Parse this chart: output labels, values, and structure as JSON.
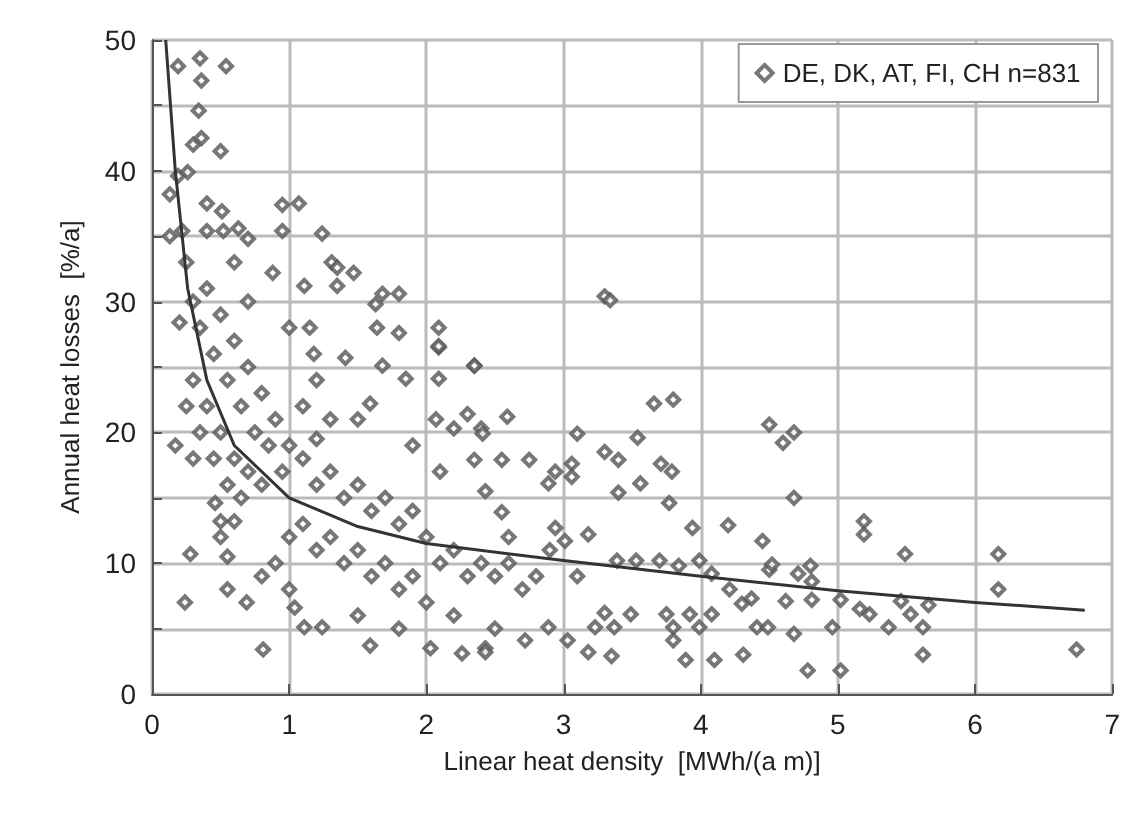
{
  "chart_data": {
    "type": "scatter",
    "xlabel": "Linear heat density  [MWh/(a m)]",
    "ylabel": "Annual heat losses  [%/a]",
    "xlim": [
      0,
      7
    ],
    "xticks": [
      0,
      1,
      2,
      3,
      4,
      5,
      6,
      7
    ],
    "ylim": [
      0,
      50
    ],
    "yticks": [
      0,
      {
        "value": 5,
        "label": null
      },
      10,
      {
        "value": 15,
        "label": null
      },
      20,
      {
        "value": 25,
        "label": null
      },
      30,
      {
        "value": 35,
        "label": null
      },
      40,
      {
        "value": 45,
        "label": null
      },
      50
    ],
    "grid": true,
    "legend": "top right",
    "marker": "diamond",
    "series": [
      {
        "name": "DE, DK, AT, FI, CH n=831",
        "color": "#555555",
        "x": [
          0.35,
          0.54,
          0.19,
          0.36,
          0.34,
          0.36,
          0.3,
          0.5,
          0.19,
          0.26,
          0.13,
          0.4,
          0.95,
          1.07,
          0.51,
          0.95,
          1.24,
          0.13,
          0.22,
          0.4,
          0.52,
          0.63,
          0.7,
          1.31,
          1.35,
          1.47,
          0.88,
          1.11,
          1.35,
          1.68,
          1.8,
          1.63,
          0.2,
          1.0,
          1.15,
          1.64,
          1.8,
          2.09,
          2.09,
          2.09,
          1.18,
          1.68,
          1.85,
          2.09,
          2.35,
          1.41,
          1.59,
          0.17,
          2.07,
          2.2,
          2.3,
          2.4,
          1.5,
          1.2,
          0.46,
          0.6,
          0.5,
          0.28,
          0.24,
          0.69,
          0.55,
          0.81,
          1.04,
          1.11,
          1.24,
          1.59,
          2.03,
          2.26,
          2.43,
          3.3,
          3.34,
          3.66,
          3.8,
          2.35,
          2.59,
          2.41,
          3.1,
          3.54,
          4.5,
          4.6,
          4.68,
          4.68,
          2.35,
          2.55,
          2.75,
          3.06,
          3.3,
          3.4,
          3.71,
          3.79,
          2.89,
          2.94,
          3.06,
          2.43,
          2.55,
          3.4,
          3.56,
          3.77,
          4.2,
          5.19,
          5.19,
          4.45,
          3.94,
          2.94,
          3.01,
          3.18,
          5.49,
          6.17,
          6.17,
          6.74,
          3.39,
          3.53,
          3.7,
          3.84,
          3.99,
          4.08,
          4.21,
          4.3,
          4.37,
          4.5,
          4.52,
          4.71,
          4.8,
          4.81,
          4.62,
          4.81,
          5.02,
          5.16,
          5.23,
          5.46,
          5.53,
          5.66,
          2.43,
          2.72,
          2.89,
          3.03,
          3.23,
          3.37,
          3.18,
          3.35,
          3.8,
          3.8,
          3.89,
          3.99,
          4.1,
          4.31,
          4.41,
          4.49,
          4.68,
          4.78,
          5.02,
          4.96,
          5.37,
          5.62,
          5.62,
          3.3,
          3.49,
          3.75,
          3.92,
          4.08,
          0.25,
          0.3,
          0.35,
          0.4,
          0.45,
          0.5,
          0.55,
          0.6,
          0.65,
          0.7,
          0.75,
          0.8,
          0.85,
          0.9,
          0.3,
          0.4,
          0.5,
          0.6,
          0.7,
          0.35,
          0.45,
          0.55,
          0.65,
          0.8,
          0.95,
          1.0,
          1.1,
          1.2,
          1.3,
          1.4,
          1.5,
          1.6,
          1.7,
          1.8,
          1.9,
          2.0,
          1.1,
          1.2,
          1.3,
          1.4,
          1.5,
          1.6,
          1.7,
          1.8,
          1.9,
          2.1,
          2.2,
          2.3,
          2.4,
          2.5,
          2.6,
          2.7,
          2.8,
          0.9,
          1.0,
          1.1,
          1.2,
          1.3,
          0.7,
          0.6,
          0.3,
          0.25,
          0.5,
          1.0,
          0.8,
          1.5,
          2.0,
          2.2,
          2.5,
          1.8,
          2.6,
          2.9,
          3.1,
          1.9,
          2.1,
          0.55
        ],
        "values": [
          48.6,
          48,
          48,
          46.9,
          44.6,
          42.5,
          42,
          41.5,
          39.6,
          39.9,
          38.2,
          37.5,
          37.4,
          37.5,
          36.9,
          35.4,
          35.2,
          35,
          35.4,
          35.4,
          35.4,
          35.6,
          34.8,
          33,
          32.6,
          32.2,
          32.2,
          31.2,
          31.2,
          30.6,
          30.6,
          29.8,
          28.4,
          28,
          28,
          28,
          27.6,
          28,
          26.5,
          26.6,
          26,
          25.1,
          24.1,
          24.1,
          25.1,
          25.7,
          22.2,
          19,
          21,
          20.3,
          21.4,
          20.3,
          21,
          19.5,
          14.6,
          13.2,
          13.2,
          10.7,
          7,
          7,
          8,
          3.4,
          6.6,
          5.1,
          5.1,
          3.7,
          3.5,
          3.1,
          3.5,
          30.4,
          30.1,
          22.2,
          22.5,
          25.1,
          21.2,
          19.9,
          19.9,
          19.6,
          20.6,
          19.2,
          20,
          15,
          17.9,
          17.9,
          17.9,
          17.6,
          18.5,
          17.9,
          17.6,
          17,
          16.1,
          17,
          16.6,
          15.5,
          13.9,
          15.4,
          16.1,
          14.6,
          12.9,
          13.2,
          12.2,
          11.7,
          12.7,
          12.7,
          11.7,
          12.2,
          10.7,
          10.7,
          8,
          3.4,
          10.2,
          10.2,
          10.2,
          9.8,
          10.2,
          9.2,
          8,
          6.9,
          7.3,
          9.5,
          9.9,
          9.2,
          9.8,
          8.6,
          7.1,
          7.2,
          7.2,
          6.5,
          6.1,
          7.1,
          6.1,
          6.8,
          3.2,
          4.1,
          5.1,
          4.1,
          5.1,
          5.1,
          3.2,
          2.9,
          5.1,
          4.1,
          2.6,
          5.1,
          2.6,
          3,
          5.1,
          5.1,
          4.6,
          1.8,
          1.8,
          5.1,
          5.1,
          5.1,
          3,
          6.2,
          6.1,
          6.1,
          6.1,
          6.1,
          33,
          30,
          28,
          31,
          26,
          29,
          24,
          27,
          22,
          25,
          20,
          23,
          19,
          21,
          24,
          22,
          20,
          18,
          17,
          20,
          18,
          16,
          15,
          16,
          17,
          19,
          18,
          16,
          17,
          15,
          16,
          14,
          15,
          13,
          14,
          12,
          13,
          11,
          12,
          10,
          11,
          9,
          10,
          8,
          9,
          10,
          11,
          9,
          10,
          9,
          10,
          8,
          9,
          10,
          8,
          22,
          24,
          21,
          30,
          33,
          18,
          22,
          12,
          12,
          9,
          6,
          7,
          6,
          5,
          5,
          12,
          11,
          9,
          19,
          17,
          10.5
        ]
      },
      {
        "type": "line",
        "color": "#333333",
        "marker": "none",
        "x": [
          0.1,
          0.17,
          0.26,
          0.4,
          0.6,
          1,
          1.5,
          2,
          3,
          4,
          5,
          6,
          6.8
        ],
        "values": [
          50,
          40,
          31,
          24,
          19,
          15,
          12.8,
          11.5,
          10.2,
          9,
          7.9,
          7,
          6.4
        ]
      }
    ]
  }
}
